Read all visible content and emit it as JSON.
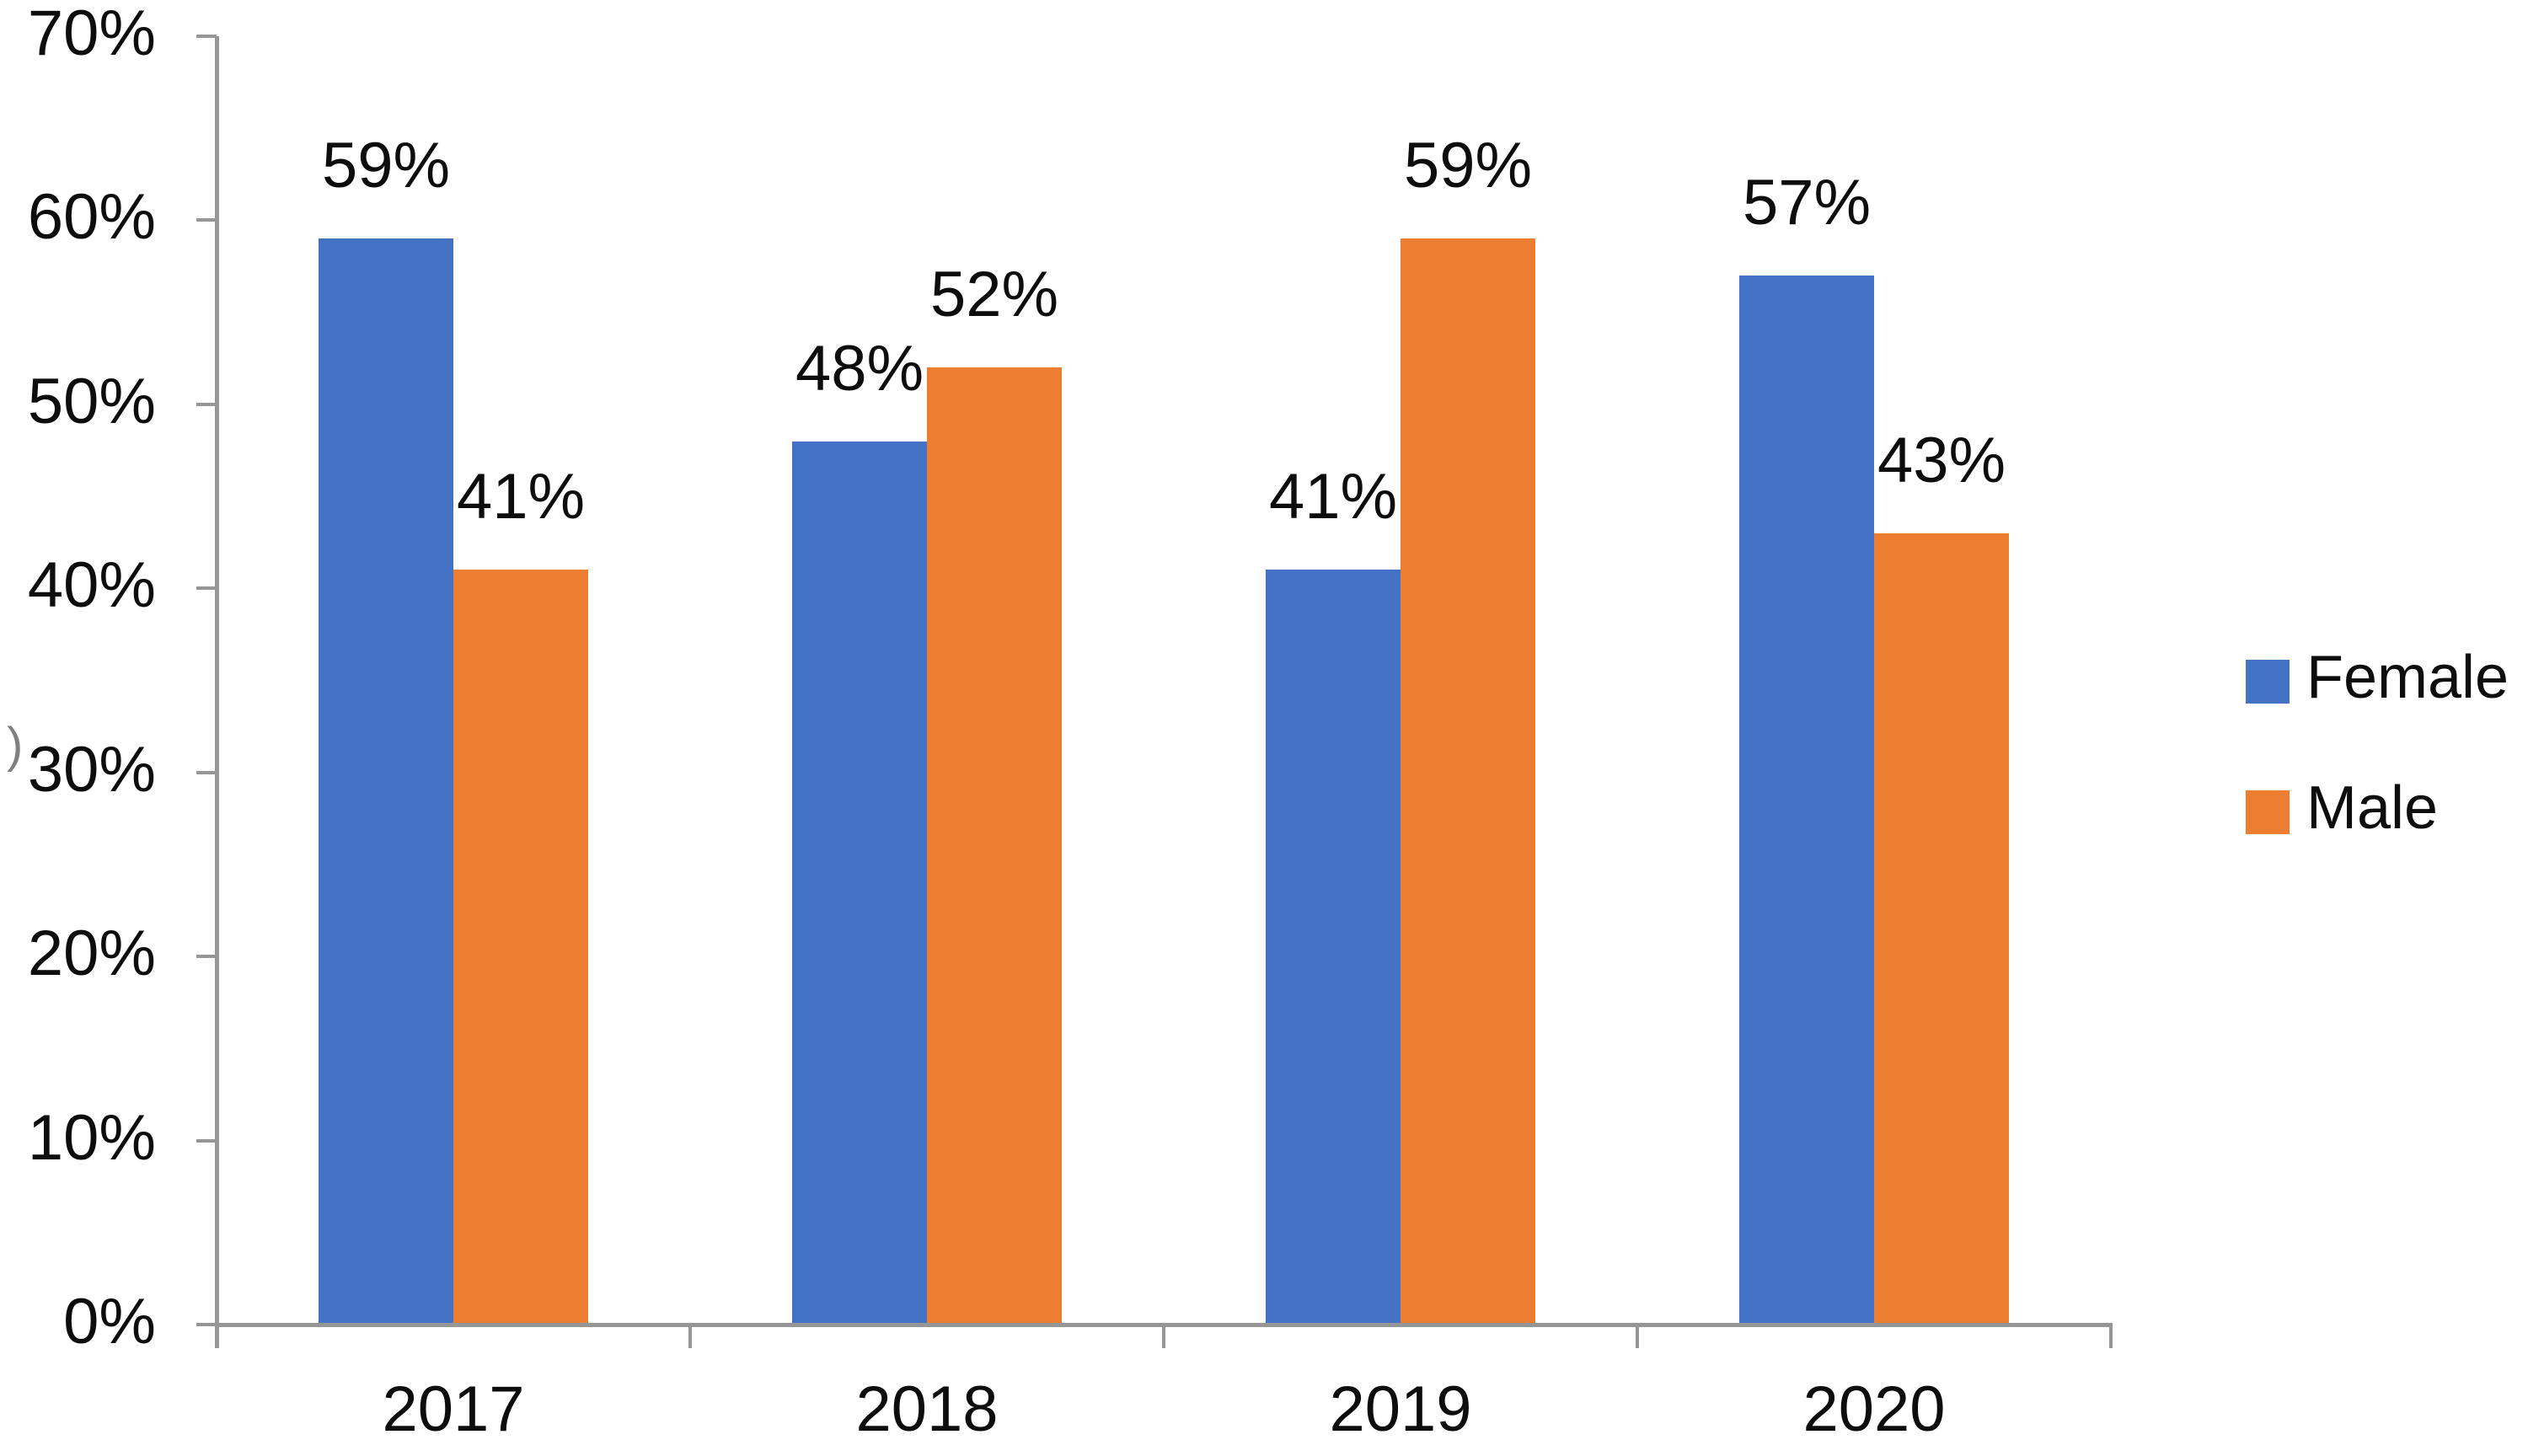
{
  "chart_data": {
    "type": "bar",
    "categories": [
      "2017",
      "2018",
      "2019",
      "2020"
    ],
    "series": [
      {
        "name": "Female",
        "color": "#4472C4",
        "values": [
          59,
          48,
          41,
          57
        ],
        "labels": [
          "59%",
          "48%",
          "41%",
          "57%"
        ]
      },
      {
        "name": "Male",
        "color": "#ED7D31",
        "values": [
          41,
          52,
          59,
          43
        ],
        "labels": [
          "41%",
          "52%",
          "59%",
          "43%"
        ]
      }
    ],
    "y_axis": {
      "min": 0,
      "max": 70,
      "step": 10,
      "tick_labels": [
        "0%",
        "10%",
        "20%",
        "30%",
        "40%",
        "50%",
        "60%",
        "70%"
      ]
    },
    "grid": false,
    "data_labels": "outside-end",
    "legend_position": "right"
  },
  "legend": {
    "entries": [
      {
        "label": "Female",
        "color": "#4472C4"
      },
      {
        "label": "Male",
        "color": "#ED7D31"
      }
    ]
  },
  "decorations": {
    "stray_mark": ")"
  },
  "colors": {
    "axis": "#969696",
    "text": "#0D0D0D",
    "background": "#FFFFFF"
  }
}
